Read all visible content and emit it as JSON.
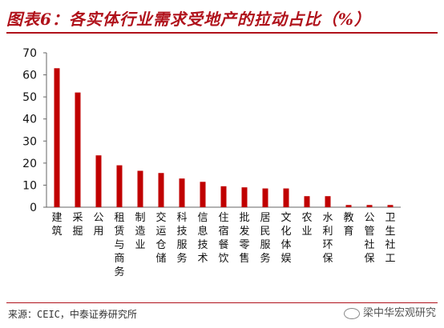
{
  "header": {
    "title": "图表6：各实体行业需求受地产的拉动占比（%）"
  },
  "footer": {
    "source": "来源：CEIC，中泰证券研究所",
    "watermark": "梁中华宏观研究"
  },
  "colors": {
    "bar": "#c00000",
    "title": "#b0121b",
    "axis": "#666666"
  },
  "chart_data": {
    "type": "bar",
    "title": "图表6：各实体行业需求受地产的拉动占比（%）",
    "xlabel": "",
    "ylabel": "",
    "ylim": [
      0,
      70
    ],
    "yticks": [
      "0",
      "10",
      "20",
      "30",
      "40",
      "50",
      "60",
      "70"
    ],
    "grid": false,
    "categories": [
      "建筑",
      "采掘",
      "公用",
      "租赁与商务",
      "制造业",
      "交运仓储",
      "科技服务",
      "信息技术",
      "住宿餐饮",
      "批发零售",
      "居民服务",
      "文化体娱",
      "农业",
      "水利环保",
      "教育",
      "公管社保",
      "卫生社工"
    ],
    "values": [
      63,
      52,
      23.5,
      19,
      16.5,
      15.5,
      13,
      11.5,
      9.5,
      9,
      8.5,
      8.5,
      5,
      5,
      1,
      1,
      1
    ]
  }
}
